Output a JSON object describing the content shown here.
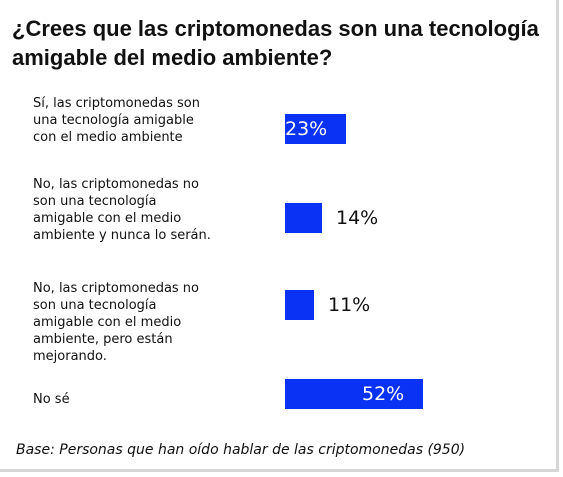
{
  "chart_data": {
    "type": "bar",
    "orientation": "horizontal",
    "title": "¿Crees que las criptomonedas son una tecnología amigable del medio ambiente?",
    "categories": [
      "Sí, las criptomonedas son una tecnología amigable con el medio ambiente",
      "No, las criptomonedas no son una tecnología amigable con el medio ambiente y nunca lo serán.",
      "No, las criptomonedas no son una tecnología amigable con el medio ambiente, pero están mejorando.",
      "No sé"
    ],
    "category_lines": [
      [
        "Sí, las criptomonedas son",
        "una tecnología amigable",
        "con el medio ambiente"
      ],
      [
        "No, las criptomonedas no",
        "son una tecnología",
        "amigable con el medio",
        "ambiente y nunca lo serán."
      ],
      [
        "No, las criptomonedas no",
        "son una tecnología",
        "amigable con el medio",
        "ambiente, pero están",
        "mejorando."
      ],
      [
        "No sé"
      ]
    ],
    "values": [
      23,
      14,
      11,
      52
    ],
    "value_labels": [
      "23%",
      "14%",
      "11%",
      "52%"
    ],
    "xlim": [
      0,
      100
    ],
    "color": "#0a32f5",
    "grid": false,
    "legend": "none"
  },
  "footnote": "Base: Personas que han oído hablar de las criptomonedas (950)"
}
